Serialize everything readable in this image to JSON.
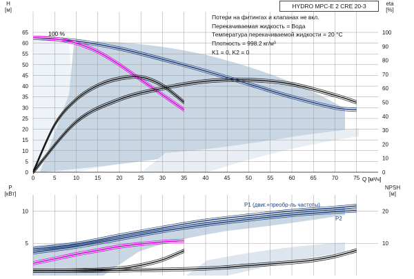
{
  "chart_data": [
    {
      "type": "line",
      "title": "HYDRO MPC-E 2 CRE 20-3",
      "notes": [
        "Потери на фитингах и клапанах не вкл.",
        "Перекачиваемая жидкость = Вода",
        "Температура перекачиваемой жидкости = 20 °C",
        "Плотность = 998.2 кг/м³",
        "K1 = 0, K2 = 0"
      ],
      "curve_label": "100 %",
      "xlabel": "Q [м³/ч]",
      "ylabel_left": [
        "H",
        "[м]"
      ],
      "ylabel_right": [
        "eta",
        "[%]"
      ],
      "xlim": [
        0,
        80
      ],
      "ylim_left": [
        0,
        65
      ],
      "ylim_right": [
        0,
        100
      ],
      "xticks": [
        0,
        5,
        10,
        15,
        20,
        25,
        30,
        35,
        40,
        45,
        50,
        55,
        60,
        65,
        70,
        75
      ],
      "yticks_left": [
        0,
        5,
        10,
        15,
        20,
        25,
        30,
        35,
        40,
        45,
        50,
        55,
        60,
        65
      ],
      "yticks_right": [
        0,
        10,
        20,
        30,
        40,
        50,
        60,
        70,
        80,
        90,
        100
      ],
      "grid": true,
      "series": [
        {
          "color": "#1f3f7a",
          "axis": "left",
          "x": [
            0,
            10,
            20,
            30,
            40,
            50,
            60,
            70,
            75
          ],
          "y": [
            62.5,
            61,
            57.5,
            52.5,
            47,
            41,
            35,
            30,
            29
          ]
        },
        {
          "color": "#e600e6",
          "axis": "left",
          "x": [
            0,
            5,
            10,
            15,
            20,
            25,
            30,
            35
          ],
          "y": [
            62.5,
            62,
            60,
            56,
            50,
            43,
            36,
            29
          ]
        },
        {
          "color": "#111111",
          "axis": "right",
          "x": [
            0,
            5,
            10,
            15,
            20,
            25,
            30,
            35
          ],
          "y": [
            0,
            34,
            52,
            62,
            67,
            68,
            62,
            50
          ]
        },
        {
          "color": "#111111",
          "axis": "right",
          "x": [
            0,
            10,
            20,
            30,
            40,
            50,
            60,
            70,
            75
          ],
          "y": [
            0,
            36,
            52,
            60,
            65,
            66,
            63,
            55,
            50
          ]
        }
      ]
    },
    {
      "type": "line",
      "xlim": [
        0,
        80
      ],
      "ylabel_left": [
        "P",
        "[кВт]"
      ],
      "ylabel_right": [
        "NPSH",
        "[м]"
      ],
      "ylim_left": [
        0,
        12.5
      ],
      "ylim_right": [
        0,
        25
      ],
      "yticks_left": [
        5,
        10
      ],
      "yticks_right": [
        10,
        20
      ],
      "grid": true,
      "series": [
        {
          "name": "P1 (двиг.+преобр-ль частоты)",
          "color": "#1f3f7a",
          "axis": "left",
          "x": [
            0,
            10,
            20,
            30,
            40,
            50,
            60,
            70,
            75
          ],
          "y": [
            4.1,
            4.9,
            6.2,
            7.4,
            8.5,
            9.3,
            10,
            10.5,
            10.8
          ]
        },
        {
          "name": "P2",
          "color": "#1f3f7a",
          "axis": "left",
          "x": [
            0,
            10,
            20,
            30,
            40,
            50,
            60,
            70,
            75
          ],
          "y": [
            3.6,
            4.5,
            5.7,
            6.9,
            7.9,
            8.7,
            9.4,
            9.9,
            10.1
          ]
        },
        {
          "color": "#e600e6",
          "axis": "left",
          "x": [
            0,
            5,
            10,
            15,
            20,
            25,
            30,
            35
          ],
          "y": [
            1.9,
            2.6,
            3.3,
            3.9,
            4.5,
            4.9,
            5.2,
            5.4
          ]
        },
        {
          "color": "#111111",
          "axis": "right",
          "x": [
            0,
            10,
            20,
            25,
            30,
            35
          ],
          "y": [
            1.5,
            1.6,
            2.2,
            3.2,
            4.9,
            7.7
          ]
        },
        {
          "color": "#111111",
          "axis": "right",
          "x": [
            0,
            20,
            40,
            50,
            60,
            65,
            70,
            75
          ],
          "y": [
            1.5,
            1.6,
            2.2,
            3.1,
            4.1,
            4.8,
            6.0,
            7.8
          ]
        }
      ]
    }
  ]
}
